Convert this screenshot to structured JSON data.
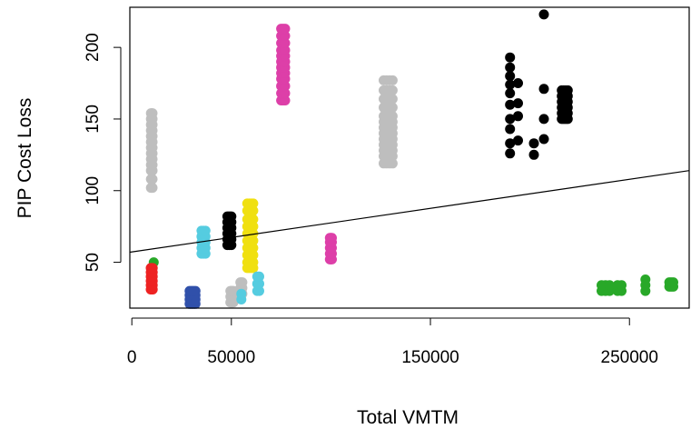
{
  "chart_data": {
    "type": "scatter",
    "title": "",
    "xlabel": "Total VMTM",
    "ylabel": "PIP Cost Loss",
    "xlim": [
      -1000,
      280000
    ],
    "ylim": [
      18,
      228
    ],
    "xticks": [
      0,
      50000,
      150000,
      250000
    ],
    "xtick_labels": [
      "0",
      "50000",
      "150000",
      "250000"
    ],
    "yticks": [
      50,
      100,
      150,
      200
    ],
    "ytick_labels": [
      "50",
      "100",
      "150",
      "200"
    ],
    "grid": false,
    "legend": "none",
    "regression_line": {
      "x": [
        -1000,
        280000
      ],
      "y": [
        57,
        114
      ],
      "color": "#000000"
    },
    "groups": [
      {
        "color": "#BEBEBE",
        "x": 10000,
        "y": [
          102,
          108,
          114,
          118,
          122,
          126,
          130,
          134,
          138,
          142,
          146,
          150,
          154
        ],
        "scatter": [
          -400,
          0,
          400
        ]
      },
      {
        "color": "#DD3FA8",
        "x": 76000,
        "y": [
          163,
          168,
          173,
          178,
          182,
          186,
          190,
          194,
          198,
          203,
          208,
          213
        ],
        "scatter": [
          -1000,
          0,
          1000
        ]
      },
      {
        "color": "#BEBEBE",
        "x": 128000,
        "y": [
          119,
          124,
          128,
          132,
          136,
          140,
          144,
          148,
          152,
          158,
          164,
          170,
          177
        ],
        "scatter": [
          -1500,
          0,
          1500,
          3000
        ]
      },
      {
        "color": "#000000",
        "x": 190000,
        "y": [
          126,
          133,
          143,
          150,
          160,
          168,
          174,
          180,
          186,
          193
        ],
        "scatter": [
          0
        ]
      },
      {
        "color": "#000000",
        "x": 194000,
        "y": [
          135,
          152,
          161,
          175
        ],
        "scatter": [
          0
        ]
      },
      {
        "color": "#000000",
        "x": 202000,
        "y": [
          125,
          133
        ],
        "scatter": [
          0
        ]
      },
      {
        "color": "#000000",
        "x": 207000,
        "y": [
          136,
          150,
          171,
          223
        ],
        "scatter": [
          0
        ]
      },
      {
        "color": "#000000",
        "x": 217000,
        "y": [
          150,
          154,
          158,
          162,
          166,
          170
        ],
        "scatter": [
          -1000,
          0,
          1000,
          2000
        ]
      },
      {
        "color": "#28A828",
        "x": 11000,
        "y": [
          50
        ],
        "scatter": [
          0
        ]
      },
      {
        "color": "#EE2222",
        "x": 10000,
        "y": [
          31,
          34,
          37,
          40,
          43,
          46
        ],
        "scatter": [
          -500,
          0,
          500
        ]
      },
      {
        "color": "#3050AA",
        "x": 30000,
        "y": [
          21,
          24,
          27,
          30
        ],
        "scatter": [
          -1000,
          0,
          1000,
          2000
        ]
      },
      {
        "color": "#55CCE0",
        "x": 36000,
        "y": [
          56,
          60,
          64,
          68,
          72
        ],
        "scatter": [
          -1000,
          0,
          1000
        ]
      },
      {
        "color": "#000000",
        "x": 49000,
        "y": [
          62,
          66,
          70,
          74,
          78,
          82
        ],
        "scatter": [
          -1000,
          0,
          1000
        ]
      },
      {
        "color": "#F0E010",
        "x": 59000,
        "y": [
          46,
          50,
          55,
          60,
          65,
          70,
          75,
          80,
          86,
          91
        ],
        "scatter": [
          -1000,
          0,
          1000,
          2000
        ]
      },
      {
        "color": "#BEBEBE",
        "x": 50000,
        "y": [
          22,
          26,
          30
        ],
        "scatter": [
          -500,
          0,
          500,
          1000
        ]
      },
      {
        "color": "#BEBEBE",
        "x": 55000,
        "y": [
          28,
          32,
          36
        ],
        "scatter": [
          -500,
          0,
          500
        ]
      },
      {
        "color": "#55CCE0",
        "x": 64000,
        "y": [
          30,
          35,
          40
        ],
        "scatter": [
          -1000,
          0
        ]
      },
      {
        "color": "#55CCE0",
        "x": 55000,
        "y": [
          24,
          28
        ],
        "scatter": [
          0
        ]
      },
      {
        "color": "#DD3FA8",
        "x": 100000,
        "y": [
          52,
          56,
          60,
          64,
          67
        ],
        "scatter": [
          -500,
          0,
          500
        ]
      },
      {
        "color": "#28A828",
        "x": 238000,
        "y": [
          30,
          34
        ],
        "scatter": [
          -2000,
          0,
          2000,
          6000,
          8000
        ]
      },
      {
        "color": "#28A828",
        "x": 258000,
        "y": [
          30,
          34,
          38
        ],
        "scatter": [
          0
        ]
      },
      {
        "color": "#28A828",
        "x": 271000,
        "y": [
          33,
          36
        ],
        "scatter": [
          -1000,
          0,
          1000
        ]
      }
    ]
  }
}
